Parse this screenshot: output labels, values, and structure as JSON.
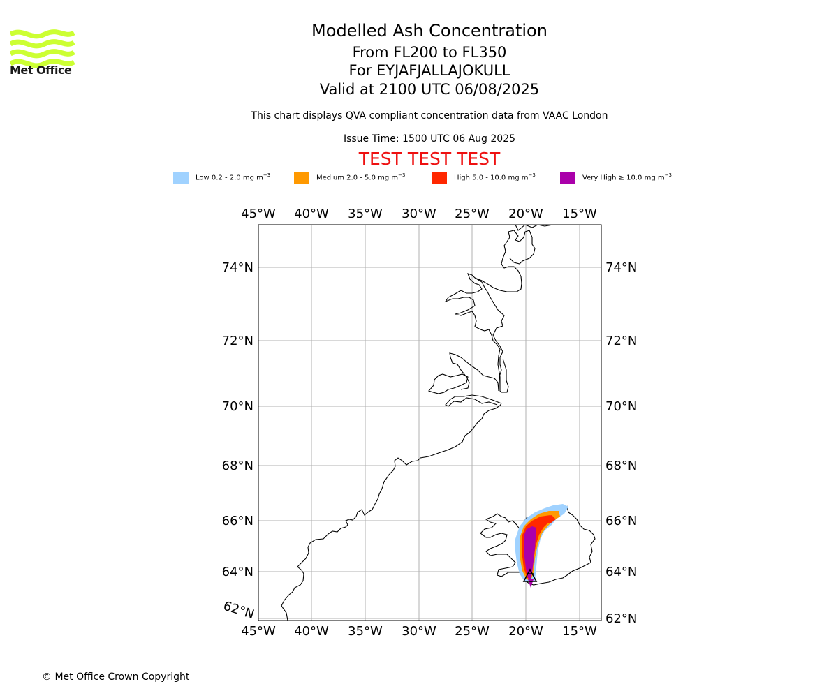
{
  "brand": {
    "name": "Met Office",
    "color": "#ccff33"
  },
  "header": {
    "title": "Modelled Ash Concentration",
    "flight_levels": "From FL200 to FL350",
    "volcano": "For EYJAFJALLAJOKULL",
    "valid": "Valid at 2100 UTC 06/08/2025",
    "description": "This chart displays QVA compliant concentration data from VAAC London",
    "issue_time": "Issue Time: 1500 UTC 06 Aug 2025",
    "test_banner": "TEST TEST TEST"
  },
  "legend": [
    {
      "label": "Low 0.2 - 2.0 mg m",
      "unit_exp": "−3",
      "color": "#a0d2ff"
    },
    {
      "label": "Medium 2.0 - 5.0 mg m",
      "unit_exp": "−3",
      "color": "#ff9900"
    },
    {
      "label": "High 5.0 - 10.0 mg m",
      "unit_exp": "−3",
      "color": "#ff2800"
    },
    {
      "label": "Very High  ≥  10.0 mg m",
      "unit_exp": "−3",
      "color": "#aa00aa"
    }
  ],
  "map": {
    "lon_labels": [
      "45°W",
      "40°W",
      "35°W",
      "30°W",
      "25°W",
      "20°W",
      "15°W"
    ],
    "lat_labels": [
      "74°N",
      "72°N",
      "70°N",
      "68°N",
      "66°N",
      "64°N",
      "62°N"
    ],
    "corner_lat_label": "62°N",
    "volcano_symbol": "triangle",
    "grid": true
  },
  "footer": {
    "copyright": "© Met Office Crown Copyright"
  }
}
